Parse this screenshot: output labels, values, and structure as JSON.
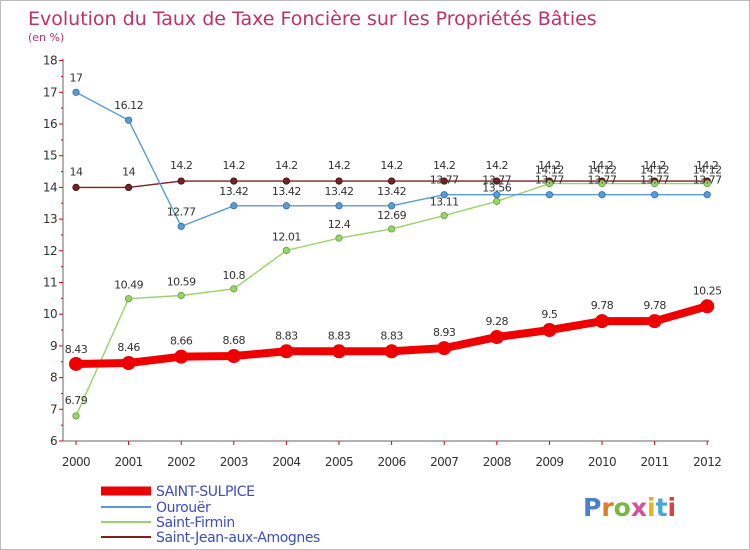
{
  "chart_data": {
    "type": "line",
    "title": "Evolution du Taux de Taxe Foncière sur les Propriétés Bâties",
    "subtitle": "(en %)",
    "xlabel": "",
    "ylabel": "",
    "ylim": [
      6,
      18
    ],
    "yticks": [
      "6",
      "7",
      "8",
      "9",
      "10",
      "11",
      "12",
      "13",
      "14",
      "15",
      "16",
      "17",
      "18"
    ],
    "categories": [
      "2000",
      "2001",
      "2002",
      "2003",
      "2004",
      "2005",
      "2006",
      "2007",
      "2008",
      "2009",
      "2010",
      "2011",
      "2012"
    ],
    "series": [
      {
        "name": "SAINT-SULPICE",
        "color": "#ee0000",
        "values": [
          8.43,
          8.46,
          8.66,
          8.68,
          8.83,
          8.83,
          8.83,
          8.93,
          9.28,
          9.5,
          9.78,
          9.78,
          10.25
        ],
        "labels": [
          "8.43",
          "8.46",
          "8.66",
          "8.68",
          "8.83",
          "8.83",
          "8.83",
          "8.93",
          "9.28",
          "9.5",
          "9.78",
          "9.78",
          "10.25"
        ]
      },
      {
        "name": "Ourouër",
        "color": "#5b9bd5",
        "values": [
          17,
          16.12,
          12.77,
          13.42,
          13.42,
          13.42,
          13.42,
          13.77,
          13.77,
          13.77,
          13.77,
          13.77,
          13.77
        ],
        "labels": [
          "17",
          "16.12",
          "12.77",
          "13.42",
          "13.42",
          "13.42",
          "13.42",
          "13.77",
          "13.77",
          "13.77",
          "13.77",
          "13.77",
          "13.77"
        ]
      },
      {
        "name": "Saint-Firmin",
        "color": "#9ad36a",
        "values": [
          6.79,
          10.49,
          10.59,
          10.8,
          12.01,
          12.4,
          12.69,
          13.11,
          13.56,
          14.12,
          14.12,
          14.12,
          14.12
        ],
        "labels": [
          "6.79",
          "10.49",
          "10.59",
          "10.8",
          "12.01",
          "12.4",
          "12.69",
          "13.11",
          "13.56",
          "14.12",
          "14.12",
          "14.12",
          "14.12"
        ]
      },
      {
        "name": "Saint-Jean-aux-Amognes",
        "color": "#7a2222",
        "values": [
          14,
          14,
          14.2,
          14.2,
          14.2,
          14.2,
          14.2,
          14.2,
          14.2,
          14.2,
          14.2,
          14.2,
          14.2
        ],
        "labels": [
          "14",
          "14",
          "14.2",
          "14.2",
          "14.2",
          "14.2",
          "14.2",
          "14.2",
          "14.2",
          "14.2",
          "14.2",
          "14.2",
          "14.2"
        ]
      }
    ],
    "legend_position": "bottom-left",
    "grid": false,
    "logo_text": "Proxiti"
  }
}
